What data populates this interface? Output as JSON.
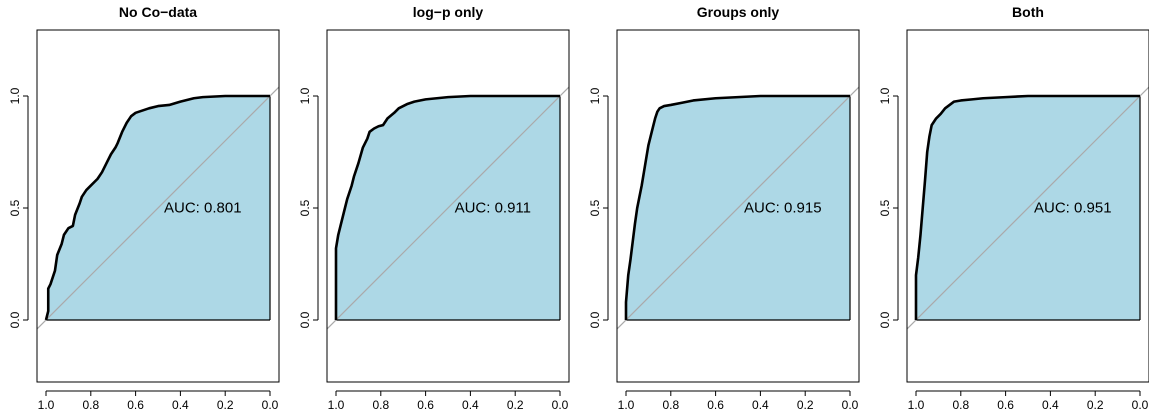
{
  "colors": {
    "area_fill": "#add8e6",
    "curve": "#000000",
    "diagonal": "#aaaaaa"
  },
  "chart_data": [
    {
      "type": "area",
      "title": "No Co−data",
      "annotation": "AUC: 0.801",
      "xlim": [
        1.0,
        0.0
      ],
      "ylim": [
        0.0,
        1.0
      ],
      "x_reversed": true,
      "x_ticks": [
        "1.0",
        "0.8",
        "0.6",
        "0.4",
        "0.2",
        "0.0"
      ],
      "y_ticks": [
        "0.0",
        "0.5",
        "1.0"
      ],
      "curve": {
        "x": [
          1.0,
          0.99,
          0.99,
          0.98,
          0.96,
          0.95,
          0.93,
          0.92,
          0.9,
          0.88,
          0.87,
          0.85,
          0.84,
          0.82,
          0.8,
          0.77,
          0.75,
          0.73,
          0.71,
          0.69,
          0.68,
          0.66,
          0.64,
          0.62,
          0.6,
          0.57,
          0.54,
          0.5,
          0.45,
          0.4,
          0.34,
          0.3,
          0.2,
          0.1,
          0.0
        ],
        "y": [
          0.0,
          0.04,
          0.14,
          0.16,
          0.22,
          0.29,
          0.34,
          0.38,
          0.41,
          0.42,
          0.47,
          0.52,
          0.55,
          0.58,
          0.6,
          0.63,
          0.66,
          0.7,
          0.74,
          0.77,
          0.79,
          0.84,
          0.88,
          0.91,
          0.925,
          0.935,
          0.945,
          0.955,
          0.96,
          0.975,
          0.99,
          0.995,
          1.0,
          1.0,
          1.0
        ]
      }
    },
    {
      "type": "area",
      "title": "log−p only",
      "annotation": "AUC: 0.911",
      "xlim": [
        1.0,
        0.0
      ],
      "ylim": [
        0.0,
        1.0
      ],
      "x_reversed": true,
      "x_ticks": [
        "1.0",
        "0.8",
        "0.6",
        "0.4",
        "0.2",
        "0.0"
      ],
      "y_ticks": [
        "0.0",
        "0.5",
        "1.0"
      ],
      "curve": {
        "x": [
          1.0,
          1.0,
          0.99,
          0.98,
          0.96,
          0.95,
          0.93,
          0.92,
          0.9,
          0.88,
          0.86,
          0.85,
          0.83,
          0.81,
          0.79,
          0.77,
          0.74,
          0.72,
          0.7,
          0.68,
          0.65,
          0.6,
          0.55,
          0.5,
          0.4,
          0.3,
          0.2,
          0.1,
          0.0
        ],
        "y": [
          0.0,
          0.32,
          0.38,
          0.42,
          0.5,
          0.54,
          0.6,
          0.64,
          0.7,
          0.77,
          0.81,
          0.84,
          0.855,
          0.865,
          0.87,
          0.9,
          0.925,
          0.945,
          0.955,
          0.965,
          0.975,
          0.985,
          0.99,
          0.995,
          1.0,
          1.0,
          1.0,
          1.0,
          1.0
        ]
      }
    },
    {
      "type": "area",
      "title": "Groups only",
      "annotation": "AUC: 0.915",
      "xlim": [
        1.0,
        0.0
      ],
      "ylim": [
        0.0,
        1.0
      ],
      "x_reversed": true,
      "x_ticks": [
        "1.0",
        "0.8",
        "0.6",
        "0.4",
        "0.2",
        "0.0"
      ],
      "y_ticks": [
        "0.0",
        "0.5",
        "1.0"
      ],
      "curve": {
        "x": [
          1.0,
          1.0,
          0.99,
          0.98,
          0.97,
          0.96,
          0.95,
          0.94,
          0.93,
          0.92,
          0.91,
          0.9,
          0.89,
          0.88,
          0.87,
          0.86,
          0.85,
          0.83,
          0.8,
          0.75,
          0.7,
          0.6,
          0.5,
          0.4,
          0.3,
          0.2,
          0.1,
          0.0
        ],
        "y": [
          0.0,
          0.08,
          0.2,
          0.27,
          0.35,
          0.43,
          0.5,
          0.55,
          0.6,
          0.66,
          0.72,
          0.78,
          0.82,
          0.86,
          0.9,
          0.93,
          0.945,
          0.955,
          0.96,
          0.97,
          0.98,
          0.99,
          0.995,
          1.0,
          1.0,
          1.0,
          1.0,
          1.0
        ]
      }
    },
    {
      "type": "area",
      "title": "Both",
      "annotation": "AUC: 0.951",
      "xlim": [
        1.0,
        0.0
      ],
      "ylim": [
        0.0,
        1.0
      ],
      "x_reversed": true,
      "x_ticks": [
        "1.0",
        "0.8",
        "0.6",
        "0.4",
        "0.2",
        "0.0"
      ],
      "y_ticks": [
        "0.0",
        "0.5",
        "1.0"
      ],
      "curve": {
        "x": [
          1.0,
          1.0,
          0.99,
          0.98,
          0.97,
          0.96,
          0.95,
          0.94,
          0.93,
          0.91,
          0.89,
          0.87,
          0.85,
          0.83,
          0.8,
          0.75,
          0.7,
          0.6,
          0.5,
          0.4,
          0.3,
          0.2,
          0.1,
          0.0
        ],
        "y": [
          0.0,
          0.2,
          0.28,
          0.38,
          0.5,
          0.62,
          0.75,
          0.82,
          0.87,
          0.9,
          0.92,
          0.945,
          0.96,
          0.975,
          0.98,
          0.985,
          0.99,
          0.995,
          1.0,
          1.0,
          1.0,
          1.0,
          1.0,
          1.0
        ]
      }
    }
  ]
}
